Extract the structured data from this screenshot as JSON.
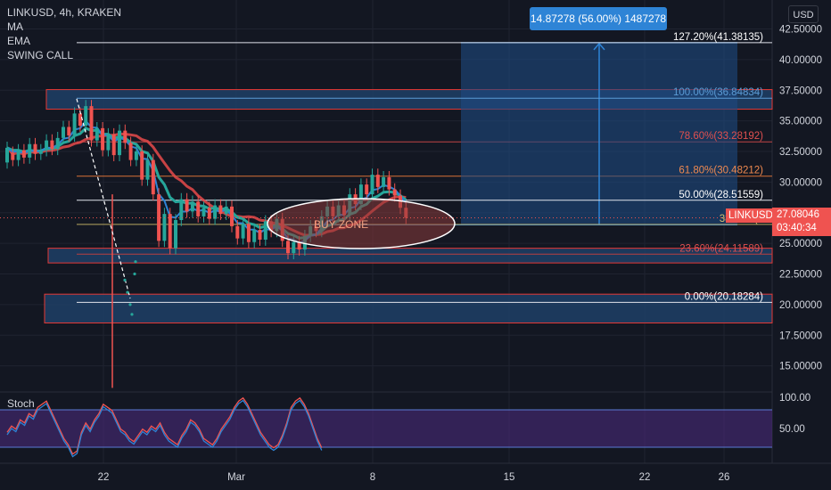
{
  "header": {
    "symbol_line": "LINKUSD, 4h, KRAKEN",
    "indicators": [
      "MA",
      "EMA",
      "SWING CALL"
    ]
  },
  "currency_button": "USD",
  "measure_label": "14.87278 (56.00%) 1487278",
  "current_price": {
    "symbol": "LINKUSD",
    "price": "27.08046",
    "countdown": "03:40:34",
    "value": 27.08046
  },
  "colors": {
    "background": "#131722",
    "up": "#26a69a",
    "down": "#ef5350",
    "zone_fill": "#1e3f66",
    "zone_border": "#e53935",
    "measure": "#2e84d6"
  },
  "fib_levels": [
    {
      "label": "127.20%(41.38135)",
      "value": 41.38135,
      "color": "#ffffff"
    },
    {
      "label": "100.00%(36.84834)",
      "value": 36.84834,
      "color": "#5b9bd5"
    },
    {
      "label": "78.60%(33.28192)",
      "value": 33.28192,
      "color": "#e05050"
    },
    {
      "label": "61.80%(30.48212)",
      "value": 30.48212,
      "color": "#f08a50"
    },
    {
      "label": "50.00%(28.51559)",
      "value": 28.51559,
      "color": "#ffffff"
    },
    {
      "label": "38.20%(2",
      "value": 26.54906,
      "color": "#d4c070"
    },
    {
      "label": "23.60%(24.11589)",
      "value": 24.11589,
      "color": "#e05050"
    },
    {
      "label": "0.00%(20.18284)",
      "value": 20.18284,
      "color": "#ffffff"
    }
  ],
  "annotations": {
    "buy_zone": "BUY ZONE"
  },
  "stoch": {
    "title": "Stoch",
    "ticks": [
      "100.00",
      "50.00"
    ],
    "band_upper": 80,
    "band_lower": 20
  },
  "chart_data": {
    "type": "candlestick",
    "title": "LINKUSD, 4h, KRAKEN",
    "price_axis": {
      "ticks": [
        "42.50000",
        "40.00000",
        "37.50000",
        "35.00000",
        "32.50000",
        "30.00000",
        "27.50000",
        "25.00000",
        "22.50000",
        "20.00000",
        "17.50000",
        "15.00000"
      ],
      "ylim": [
        12.6,
        44.0
      ]
    },
    "time_axis": {
      "ticks": [
        "22",
        "Mar",
        "8",
        "15",
        "22",
        "26"
      ]
    },
    "candles": [
      [
        0,
        31.6,
        32.8
      ],
      [
        1,
        32.4,
        31.8
      ],
      [
        2,
        31.8,
        32.6
      ],
      [
        3,
        32.6,
        32.0
      ],
      [
        4,
        32.0,
        33.1
      ],
      [
        5,
        33.1,
        32.3
      ],
      [
        6,
        32.3,
        32.6
      ],
      [
        7,
        32.6,
        33.4
      ],
      [
        8,
        33.4,
        32.7
      ],
      [
        9,
        32.7,
        33.6
      ],
      [
        10,
        33.6,
        34.5
      ],
      [
        11,
        34.5,
        33.8
      ],
      [
        12,
        33.8,
        35.6
      ],
      [
        13,
        35.6,
        34.6
      ],
      [
        14,
        34.6,
        36.2
      ],
      [
        15,
        36.2,
        33.4
      ],
      [
        16,
        33.4,
        34.4
      ],
      [
        17,
        34.4,
        32.6
      ],
      [
        18,
        32.6,
        33.9
      ],
      [
        19,
        33.9,
        32.2
      ],
      [
        20,
        32.2,
        34.2
      ],
      [
        21,
        34.2,
        33.2
      ],
      [
        22,
        33.2,
        31.8
      ],
      [
        23,
        31.8,
        32.5
      ],
      [
        24,
        32.5,
        30.2
      ],
      [
        25,
        30.2,
        31.8
      ],
      [
        26,
        31.8,
        29.0
      ],
      [
        27,
        29.0,
        25.2
      ],
      [
        28,
        25.2,
        27.4
      ],
      [
        29,
        27.4,
        24.6
      ],
      [
        30,
        24.6,
        26.9
      ],
      [
        31,
        26.9,
        28.6
      ],
      [
        32,
        28.6,
        27.6
      ],
      [
        33,
        27.6,
        28.4
      ],
      [
        34,
        28.4,
        27.2
      ],
      [
        35,
        27.2,
        27.9
      ],
      [
        36,
        27.9,
        27.0
      ],
      [
        37,
        27.0,
        28.1
      ],
      [
        38,
        28.1,
        27.4
      ],
      [
        39,
        27.4,
        28.0
      ],
      [
        40,
        28.0,
        26.4
      ],
      [
        41,
        26.4,
        25.4
      ],
      [
        42,
        25.4,
        26.6
      ],
      [
        43,
        26.6,
        25.1
      ],
      [
        44,
        25.1,
        26.1
      ],
      [
        45,
        26.1,
        25.3
      ],
      [
        46,
        25.3,
        26.8
      ],
      [
        47,
        26.8,
        26.0
      ],
      [
        48,
        26.0,
        27.0
      ],
      [
        49,
        27.0,
        25.2
      ],
      [
        50,
        25.2,
        24.2
      ],
      [
        51,
        24.2,
        25.1
      ],
      [
        52,
        25.1,
        24.5
      ],
      [
        53,
        24.5,
        25.6
      ],
      [
        54,
        25.6,
        26.4
      ],
      [
        55,
        26.4,
        26.0
      ],
      [
        56,
        26.0,
        27.2
      ],
      [
        57,
        27.2,
        28.0
      ],
      [
        58,
        28.0,
        27.2
      ],
      [
        59,
        27.2,
        28.1
      ],
      [
        60,
        28.1,
        27.3
      ],
      [
        61,
        27.3,
        29.0
      ],
      [
        62,
        29.0,
        28.2
      ],
      [
        63,
        28.2,
        29.8
      ],
      [
        64,
        29.8,
        29.0
      ],
      [
        65,
        29.0,
        30.6
      ],
      [
        66,
        30.6,
        29.6
      ],
      [
        67,
        29.6,
        30.4
      ],
      [
        68,
        30.4,
        29.4
      ],
      [
        69,
        29.4,
        28.9
      ],
      [
        70,
        28.9,
        27.9
      ],
      [
        71,
        27.9,
        27.08
      ]
    ]
  }
}
